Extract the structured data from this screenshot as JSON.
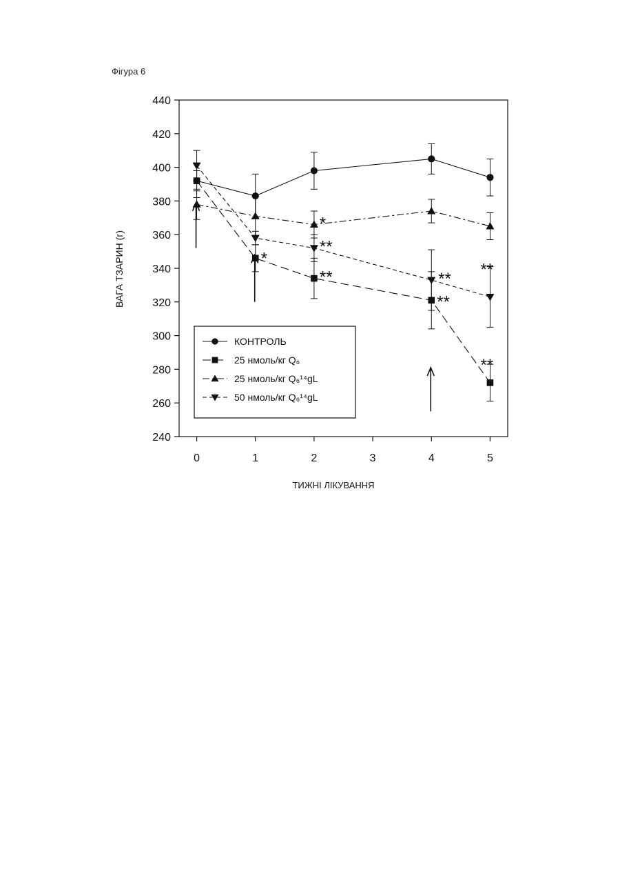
{
  "figure_label": "Фігура 6",
  "chart_data": {
    "type": "line",
    "xlabel": "ТИЖНІ ЛІКУВАННЯ",
    "ylabel": "ВАГА ТЗАРИН (г)",
    "xlim": [
      -0.3,
      5.3
    ],
    "ylim": [
      240,
      440
    ],
    "x_ticks": [
      0,
      1,
      2,
      3,
      4,
      5
    ],
    "y_ticks": [
      240,
      260,
      280,
      300,
      320,
      340,
      360,
      380,
      400,
      420,
      440
    ],
    "grid": false,
    "legend_position": "bottom-left",
    "treatment_arrows_at_weeks": [
      0,
      1,
      4
    ],
    "series": [
      {
        "name": "КОНТРОЛЬ",
        "marker": "circle",
        "line": "solid",
        "x": [
          0,
          1,
          2,
          4,
          5
        ],
        "y": [
          392,
          383,
          398,
          405,
          394
        ],
        "error": [
          10,
          13,
          11,
          9,
          11
        ],
        "significance": [
          "",
          "",
          "",
          "",
          ""
        ]
      },
      {
        "name": "25 нмоль/кг Q₆",
        "marker": "square",
        "line": "longdash",
        "x": [
          0,
          1,
          2,
          4,
          5
        ],
        "y": [
          392,
          346,
          334,
          321,
          272
        ],
        "error": [
          6,
          8,
          12,
          17,
          11
        ],
        "significance": [
          "",
          "*",
          "**",
          "**",
          "**"
        ]
      },
      {
        "name": "25 нмоль/кг Q₆¹⁴gL",
        "marker": "triangle-up",
        "line": "dashdot",
        "x": [
          0,
          1,
          2,
          4,
          5
        ],
        "y": [
          378,
          371,
          366,
          374,
          365
        ],
        "error": [
          9,
          12,
          8,
          7,
          8
        ],
        "significance": [
          "",
          "",
          "*",
          "",
          ""
        ]
      },
      {
        "name": "50 нмоль/кг Q₆¹⁴gL",
        "marker": "triangle-down",
        "line": "shortdash",
        "x": [
          0,
          1,
          2,
          4,
          5
        ],
        "y": [
          401,
          358,
          352,
          333,
          323
        ],
        "error": [
          9,
          4,
          8,
          18,
          18
        ],
        "significance": [
          "",
          "",
          "**",
          "**",
          "**"
        ]
      }
    ]
  }
}
